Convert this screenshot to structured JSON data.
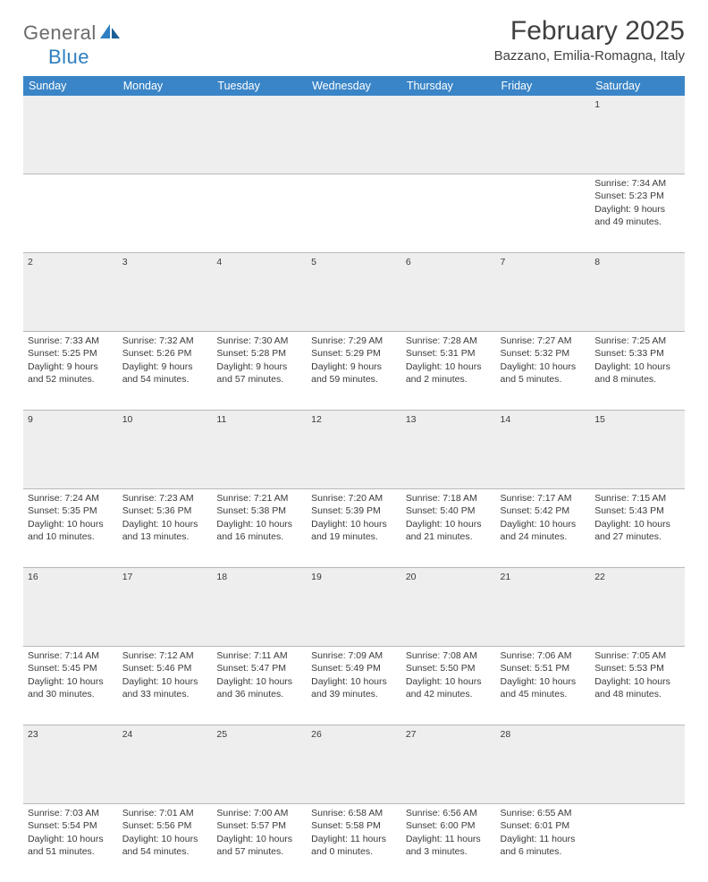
{
  "brand": {
    "part1": "General",
    "part2": "Blue"
  },
  "title": "February 2025",
  "location": "Bazzano, Emilia-Romagna, Italy",
  "colors": {
    "header_bg": "#3a85c7",
    "header_text": "#ffffff",
    "daynum_bg": "#eeeeee",
    "border": "#b8b8b8",
    "body_text": "#3a3a3a",
    "logo_gray": "#6b6b6b",
    "logo_blue": "#2f7fc1"
  },
  "day_headers": [
    "Sunday",
    "Monday",
    "Tuesday",
    "Wednesday",
    "Thursday",
    "Friday",
    "Saturday"
  ],
  "weeks": [
    {
      "nums": [
        "",
        "",
        "",
        "",
        "",
        "",
        "1"
      ],
      "cells": [
        null,
        null,
        null,
        null,
        null,
        null,
        {
          "sr": "Sunrise: 7:34 AM",
          "ss": "Sunset: 5:23 PM",
          "d1": "Daylight: 9 hours",
          "d2": "and 49 minutes."
        }
      ]
    },
    {
      "nums": [
        "2",
        "3",
        "4",
        "5",
        "6",
        "7",
        "8"
      ],
      "cells": [
        {
          "sr": "Sunrise: 7:33 AM",
          "ss": "Sunset: 5:25 PM",
          "d1": "Daylight: 9 hours",
          "d2": "and 52 minutes."
        },
        {
          "sr": "Sunrise: 7:32 AM",
          "ss": "Sunset: 5:26 PM",
          "d1": "Daylight: 9 hours",
          "d2": "and 54 minutes."
        },
        {
          "sr": "Sunrise: 7:30 AM",
          "ss": "Sunset: 5:28 PM",
          "d1": "Daylight: 9 hours",
          "d2": "and 57 minutes."
        },
        {
          "sr": "Sunrise: 7:29 AM",
          "ss": "Sunset: 5:29 PM",
          "d1": "Daylight: 9 hours",
          "d2": "and 59 minutes."
        },
        {
          "sr": "Sunrise: 7:28 AM",
          "ss": "Sunset: 5:31 PM",
          "d1": "Daylight: 10 hours",
          "d2": "and 2 minutes."
        },
        {
          "sr": "Sunrise: 7:27 AM",
          "ss": "Sunset: 5:32 PM",
          "d1": "Daylight: 10 hours",
          "d2": "and 5 minutes."
        },
        {
          "sr": "Sunrise: 7:25 AM",
          "ss": "Sunset: 5:33 PM",
          "d1": "Daylight: 10 hours",
          "d2": "and 8 minutes."
        }
      ]
    },
    {
      "nums": [
        "9",
        "10",
        "11",
        "12",
        "13",
        "14",
        "15"
      ],
      "cells": [
        {
          "sr": "Sunrise: 7:24 AM",
          "ss": "Sunset: 5:35 PM",
          "d1": "Daylight: 10 hours",
          "d2": "and 10 minutes."
        },
        {
          "sr": "Sunrise: 7:23 AM",
          "ss": "Sunset: 5:36 PM",
          "d1": "Daylight: 10 hours",
          "d2": "and 13 minutes."
        },
        {
          "sr": "Sunrise: 7:21 AM",
          "ss": "Sunset: 5:38 PM",
          "d1": "Daylight: 10 hours",
          "d2": "and 16 minutes."
        },
        {
          "sr": "Sunrise: 7:20 AM",
          "ss": "Sunset: 5:39 PM",
          "d1": "Daylight: 10 hours",
          "d2": "and 19 minutes."
        },
        {
          "sr": "Sunrise: 7:18 AM",
          "ss": "Sunset: 5:40 PM",
          "d1": "Daylight: 10 hours",
          "d2": "and 21 minutes."
        },
        {
          "sr": "Sunrise: 7:17 AM",
          "ss": "Sunset: 5:42 PM",
          "d1": "Daylight: 10 hours",
          "d2": "and 24 minutes."
        },
        {
          "sr": "Sunrise: 7:15 AM",
          "ss": "Sunset: 5:43 PM",
          "d1": "Daylight: 10 hours",
          "d2": "and 27 minutes."
        }
      ]
    },
    {
      "nums": [
        "16",
        "17",
        "18",
        "19",
        "20",
        "21",
        "22"
      ],
      "cells": [
        {
          "sr": "Sunrise: 7:14 AM",
          "ss": "Sunset: 5:45 PM",
          "d1": "Daylight: 10 hours",
          "d2": "and 30 minutes."
        },
        {
          "sr": "Sunrise: 7:12 AM",
          "ss": "Sunset: 5:46 PM",
          "d1": "Daylight: 10 hours",
          "d2": "and 33 minutes."
        },
        {
          "sr": "Sunrise: 7:11 AM",
          "ss": "Sunset: 5:47 PM",
          "d1": "Daylight: 10 hours",
          "d2": "and 36 minutes."
        },
        {
          "sr": "Sunrise: 7:09 AM",
          "ss": "Sunset: 5:49 PM",
          "d1": "Daylight: 10 hours",
          "d2": "and 39 minutes."
        },
        {
          "sr": "Sunrise: 7:08 AM",
          "ss": "Sunset: 5:50 PM",
          "d1": "Daylight: 10 hours",
          "d2": "and 42 minutes."
        },
        {
          "sr": "Sunrise: 7:06 AM",
          "ss": "Sunset: 5:51 PM",
          "d1": "Daylight: 10 hours",
          "d2": "and 45 minutes."
        },
        {
          "sr": "Sunrise: 7:05 AM",
          "ss": "Sunset: 5:53 PM",
          "d1": "Daylight: 10 hours",
          "d2": "and 48 minutes."
        }
      ]
    },
    {
      "nums": [
        "23",
        "24",
        "25",
        "26",
        "27",
        "28",
        ""
      ],
      "cells": [
        {
          "sr": "Sunrise: 7:03 AM",
          "ss": "Sunset: 5:54 PM",
          "d1": "Daylight: 10 hours",
          "d2": "and 51 minutes."
        },
        {
          "sr": "Sunrise: 7:01 AM",
          "ss": "Sunset: 5:56 PM",
          "d1": "Daylight: 10 hours",
          "d2": "and 54 minutes."
        },
        {
          "sr": "Sunrise: 7:00 AM",
          "ss": "Sunset: 5:57 PM",
          "d1": "Daylight: 10 hours",
          "d2": "and 57 minutes."
        },
        {
          "sr": "Sunrise: 6:58 AM",
          "ss": "Sunset: 5:58 PM",
          "d1": "Daylight: 11 hours",
          "d2": "and 0 minutes."
        },
        {
          "sr": "Sunrise: 6:56 AM",
          "ss": "Sunset: 6:00 PM",
          "d1": "Daylight: 11 hours",
          "d2": "and 3 minutes."
        },
        {
          "sr": "Sunrise: 6:55 AM",
          "ss": "Sunset: 6:01 PM",
          "d1": "Daylight: 11 hours",
          "d2": "and 6 minutes."
        },
        null
      ]
    }
  ]
}
